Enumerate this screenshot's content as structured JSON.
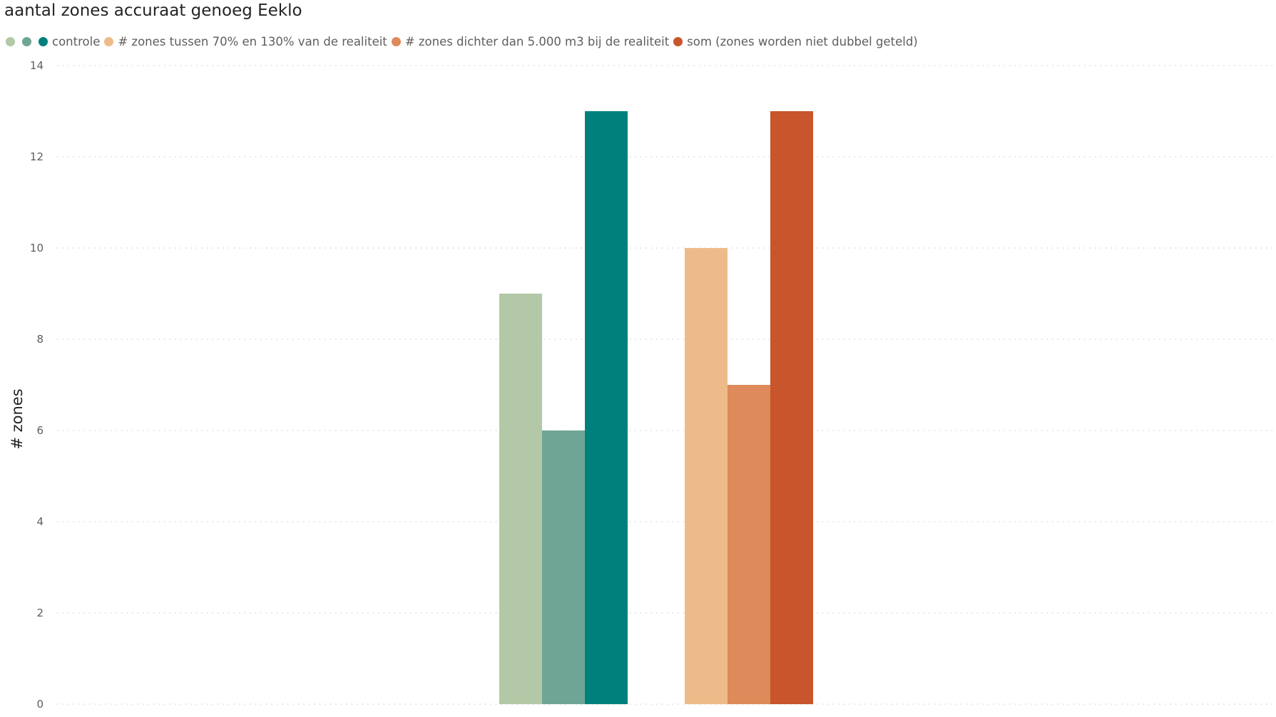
{
  "chart_data": {
    "type": "bar",
    "title": "aantal zones accuraat genoeg Eeklo",
    "xlabel": "",
    "ylabel": "# zones",
    "ylim": [
      0,
      14
    ],
    "yticks": [
      0,
      2,
      4,
      6,
      8,
      10,
      12,
      14
    ],
    "grid": true,
    "legend_position": "top-left",
    "legend": [
      {
        "label": "",
        "color": "#b3c8a6"
      },
      {
        "label": "",
        "color": "#6fa594"
      },
      {
        "label": "controle",
        "color": "#00807d"
      },
      {
        "label": "# zones tussen 70% en 130% van de realiteit",
        "color": "#edbb8a"
      },
      {
        "label": "# zones dichter dan 5.000 m3 bij de realiteit",
        "color": "#de8a5a"
      },
      {
        "label": "som (zones worden niet dubbel geteld)",
        "color": "#c8552b"
      }
    ],
    "groups": [
      {
        "label": "",
        "bars": [
          {
            "value": 9,
            "color": "#b3c8a6"
          },
          {
            "value": 6,
            "color": "#6fa594"
          },
          {
            "value": 13,
            "color": "#00807d"
          }
        ]
      },
      {
        "label": "",
        "bars": [
          {
            "value": 10,
            "color": "#edbb8a"
          },
          {
            "value": 7,
            "color": "#de8a5a"
          },
          {
            "value": 13,
            "color": "#c8552b"
          }
        ]
      }
    ]
  }
}
